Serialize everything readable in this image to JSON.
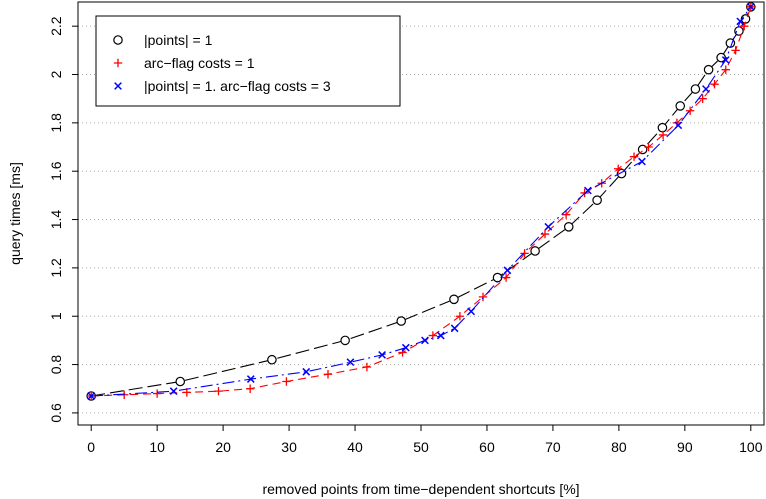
{
  "chart_data": {
    "type": "line",
    "xlabel": "removed points from time−dependent shortcuts [%]",
    "ylabel": "query times [ms]",
    "xlim": [
      -2,
      102
    ],
    "ylim": [
      0.55,
      2.3
    ],
    "xticks": [
      0,
      10,
      20,
      30,
      40,
      50,
      60,
      70,
      80,
      90,
      100
    ],
    "yticks": [
      0.6,
      0.8,
      1,
      1.2,
      1.4,
      1.6,
      1.8,
      2,
      2.2
    ],
    "grid": "horizontal dotted",
    "legend_position": "top-left",
    "series": [
      {
        "name": "|points| = 1",
        "color": "#000000",
        "marker": "circle",
        "line": "long-dash",
        "x": [
          0,
          13.5,
          27.4,
          38.5,
          47.0,
          55.0,
          61.6,
          67.3,
          72.4,
          76.7,
          80.4,
          83.6,
          86.6,
          89.3,
          91.6,
          93.6,
          95.5,
          96.9,
          98.2,
          99.2,
          100
        ],
        "y": [
          0.67,
          0.73,
          0.82,
          0.9,
          0.98,
          1.07,
          1.16,
          1.27,
          1.37,
          1.48,
          1.59,
          1.69,
          1.78,
          1.87,
          1.94,
          2.02,
          2.07,
          2.13,
          2.18,
          2.23,
          2.28
        ]
      },
      {
        "name": "arc−flag costs = 1",
        "color": "#ff0000",
        "marker": "plus",
        "line": "dashed",
        "x": [
          0,
          5.0,
          10.0,
          14.5,
          19.3,
          24.1,
          29.6,
          35.9,
          41.8,
          47.2,
          51.8,
          55.9,
          59.4,
          62.9,
          65.7,
          68.8,
          72.0,
          74.8,
          77.4,
          79.9,
          82.3,
          84.5,
          86.7,
          88.8,
          90.8,
          92.7,
          94.5,
          96.2,
          97.7,
          99.0,
          100
        ],
        "y": [
          0.67,
          0.675,
          0.68,
          0.685,
          0.69,
          0.7,
          0.73,
          0.76,
          0.79,
          0.85,
          0.92,
          1.0,
          1.08,
          1.16,
          1.26,
          1.34,
          1.42,
          1.51,
          1.55,
          1.61,
          1.66,
          1.7,
          1.75,
          1.8,
          1.85,
          1.9,
          1.96,
          2.02,
          2.1,
          2.2,
          2.28
        ]
      },
      {
        "name": "|points| = 1. arc−flag costs = 3",
        "color": "#0000ff",
        "marker": "x",
        "line": "dash-dot",
        "x": [
          0,
          12.5,
          24.2,
          32.6,
          39.3,
          44.1,
          47.7,
          50.6,
          53.0,
          55.1,
          57.6,
          63.1,
          69.3,
          75.3,
          83.5,
          89.0,
          93.2,
          96.2,
          98.4,
          100
        ],
        "y": [
          0.67,
          0.69,
          0.74,
          0.77,
          0.81,
          0.84,
          0.87,
          0.9,
          0.92,
          0.95,
          1.02,
          1.19,
          1.37,
          1.52,
          1.64,
          1.79,
          1.94,
          2.06,
          2.22,
          2.28
        ]
      }
    ]
  }
}
